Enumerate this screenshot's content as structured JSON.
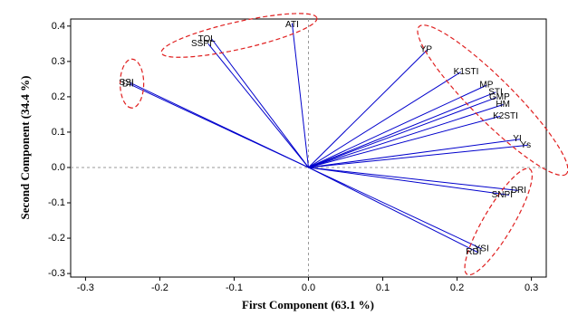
{
  "chart_data": {
    "type": "biplot",
    "title": "",
    "xlabel": "First Component (63.1 %)",
    "ylabel": "Second Component (34.4 %)",
    "xlim": [
      -0.32,
      0.32
    ],
    "ylim": [
      -0.31,
      0.42
    ],
    "xticks": [
      -0.3,
      -0.2,
      -0.1,
      0.0,
      0.1,
      0.2,
      0.3
    ],
    "yticks": [
      -0.3,
      -0.2,
      -0.1,
      0.0,
      0.1,
      0.2,
      0.3,
      0.4
    ],
    "xtick_labels": [
      "-0.3",
      "-0.2",
      "-0.1",
      "0.0",
      "0.1",
      "0.2",
      "0.3"
    ],
    "ytick_labels": [
      "-0.3",
      "-0.2",
      "-0.1",
      "0.0",
      "0.1",
      "0.2",
      "0.3",
      "0.4"
    ],
    "grid": false,
    "origin": [
      0,
      0
    ],
    "line_color": "#0000cc",
    "group_outline_color": "#e02020",
    "vectors": [
      {
        "label": "SSI",
        "x": -0.24,
        "y": 0.24,
        "label_anchor": "end"
      },
      {
        "label": "DII",
        "x": -0.24,
        "y": 0.235,
        "label_anchor": "end"
      },
      {
        "label": "TOL",
        "x": -0.13,
        "y": 0.363,
        "label_anchor": "end"
      },
      {
        "label": "SSPI",
        "x": -0.135,
        "y": 0.35,
        "label_anchor": "end"
      },
      {
        "label": "ATI",
        "x": -0.022,
        "y": 0.408,
        "label_anchor": "middle"
      },
      {
        "label": "YP",
        "x": 0.16,
        "y": 0.333,
        "label_anchor": "start"
      },
      {
        "label": "K1STI",
        "x": 0.205,
        "y": 0.27,
        "label_anchor": "start"
      },
      {
        "label": "MP",
        "x": 0.24,
        "y": 0.233,
        "label_anchor": "start"
      },
      {
        "label": "STI",
        "x": 0.252,
        "y": 0.213,
        "label_anchor": "start"
      },
      {
        "label": "GMP",
        "x": 0.253,
        "y": 0.198,
        "label_anchor": "start"
      },
      {
        "label": "HM",
        "x": 0.262,
        "y": 0.178,
        "label_anchor": "start"
      },
      {
        "label": "K2STI",
        "x": 0.258,
        "y": 0.145,
        "label_anchor": "start"
      },
      {
        "label": "YI",
        "x": 0.285,
        "y": 0.08,
        "label_anchor": "start"
      },
      {
        "label": "Ys",
        "x": 0.295,
        "y": 0.063,
        "label_anchor": "start"
      },
      {
        "label": "DRI",
        "x": 0.282,
        "y": -0.065,
        "label_anchor": "start"
      },
      {
        "label": "SNPI",
        "x": 0.27,
        "y": -0.078,
        "label_anchor": "end"
      },
      {
        "label": "YSI",
        "x": 0.233,
        "y": -0.23,
        "label_anchor": "start"
      },
      {
        "label": "RDI",
        "x": 0.228,
        "y": -0.24,
        "label_anchor": "end"
      }
    ],
    "groups": [
      {
        "members": [
          "SSI",
          "DII"
        ]
      },
      {
        "members": [
          "TOL",
          "SSPI",
          "ATI"
        ]
      },
      {
        "members": [
          "YP",
          "K1STI",
          "MP",
          "STI",
          "GMP",
          "HM",
          "K2STI",
          "YI",
          "Ys"
        ]
      },
      {
        "members": [
          "DRI",
          "SNPI",
          "YSI",
          "RDI"
        ]
      }
    ]
  }
}
